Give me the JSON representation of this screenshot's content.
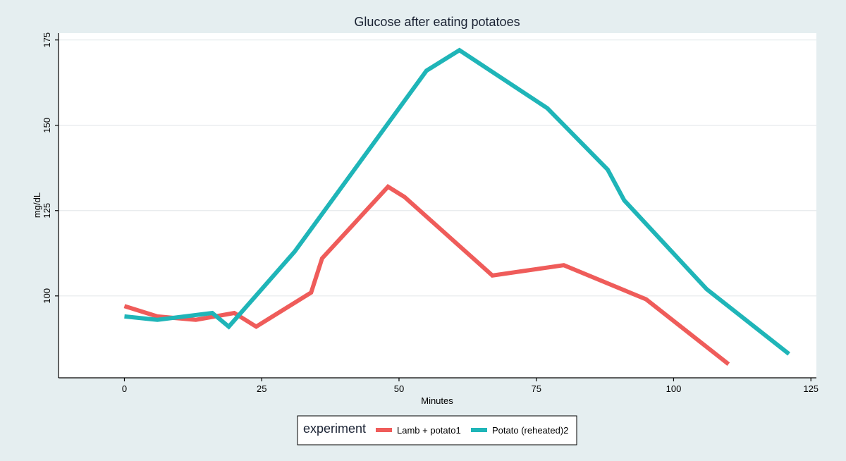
{
  "chart_data": {
    "type": "line",
    "title": "Glucose after eating potatoes",
    "xlabel": "Minutes",
    "ylabel": "mg/dL",
    "xlim": [
      -12,
      126
    ],
    "ylim": [
      76,
      177
    ],
    "x_ticks": [
      0,
      25,
      50,
      75,
      100,
      125
    ],
    "y_ticks": [
      100,
      125,
      150,
      175
    ],
    "grid": true,
    "legend": {
      "title": "experiment",
      "placement": "bottom"
    },
    "series": [
      {
        "name": "Lamb + potato1",
        "color": "#ef5c5a",
        "x": [
          0,
          6,
          13,
          20,
          24,
          34,
          36,
          48,
          51,
          67,
          80,
          95,
          110
        ],
        "y": [
          97,
          94,
          93,
          95,
          91,
          101,
          111,
          132,
          129,
          106,
          109,
          99,
          80
        ]
      },
      {
        "name": "Potato (reheated)2",
        "color": "#1fb5b8",
        "x": [
          0,
          6,
          16,
          19,
          31,
          55,
          61,
          77,
          88,
          91,
          106,
          121
        ],
        "y": [
          94,
          93,
          95,
          91,
          113,
          166,
          172,
          155,
          137,
          128,
          102,
          83
        ]
      }
    ]
  }
}
